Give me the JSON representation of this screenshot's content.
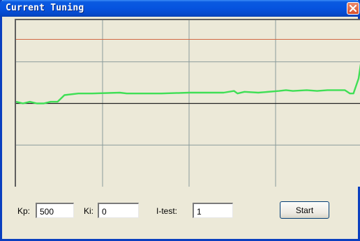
{
  "window": {
    "title": "Current Tuning"
  },
  "plot": {
    "colors": {
      "background": "#ece9d8",
      "grid": "#8a9b9b",
      "setpoint": "#d16844",
      "axis": "#222222",
      "signal": "#3fdf55"
    },
    "setpoint_level": 0.77,
    "axis_level": 0.0,
    "y_range": [
      -1.0,
      1.0
    ],
    "signal": [
      [
        0.0,
        0.02
      ],
      [
        0.02,
        0.0
      ],
      [
        0.04,
        0.02
      ],
      [
        0.06,
        0.0
      ],
      [
        0.08,
        0.0
      ],
      [
        0.1,
        0.02
      ],
      [
        0.12,
        0.02
      ],
      [
        0.14,
        0.1
      ],
      [
        0.18,
        0.12
      ],
      [
        0.22,
        0.12
      ],
      [
        0.3,
        0.13
      ],
      [
        0.32,
        0.12
      ],
      [
        0.42,
        0.12
      ],
      [
        0.5,
        0.13
      ],
      [
        0.6,
        0.13
      ],
      [
        0.63,
        0.15
      ],
      [
        0.64,
        0.12
      ],
      [
        0.66,
        0.14
      ],
      [
        0.7,
        0.13
      ],
      [
        0.76,
        0.15
      ],
      [
        0.78,
        0.16
      ],
      [
        0.8,
        0.15
      ],
      [
        0.84,
        0.16
      ],
      [
        0.87,
        0.15
      ],
      [
        0.9,
        0.16
      ],
      [
        0.95,
        0.16
      ],
      [
        0.965,
        0.12
      ],
      [
        0.975,
        0.12
      ],
      [
        0.99,
        0.3
      ],
      [
        1.0,
        0.58
      ]
    ]
  },
  "controls": {
    "kp_label": "Kp:",
    "kp_value": "500",
    "ki_label": "Ki:",
    "ki_value": "0",
    "itest_label": "I-test:",
    "itest_value": "1",
    "start_label": "Start"
  },
  "icons": {
    "close": "close-icon"
  }
}
